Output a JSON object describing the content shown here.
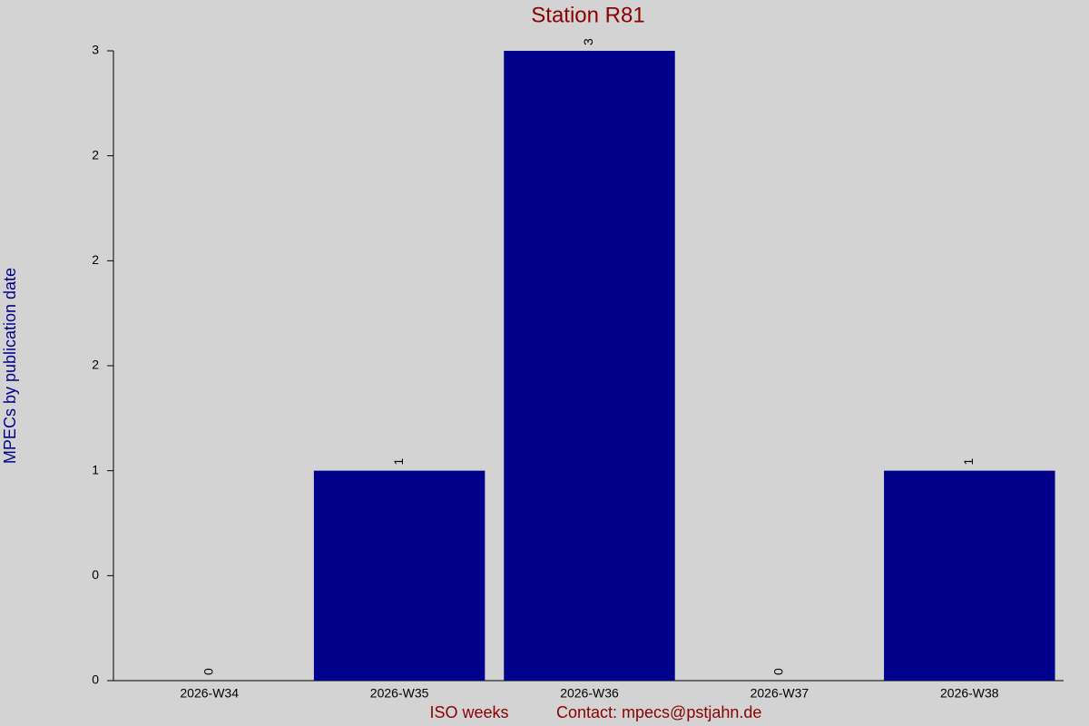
{
  "chart_data": {
    "type": "bar",
    "title": "Station R81",
    "categories": [
      "2026-W34",
      "2026-W35",
      "2026-W36",
      "2026-W37",
      "2026-W38"
    ],
    "values": [
      0,
      1,
      3,
      0,
      1
    ],
    "color": "#00008b",
    "ylim": [
      0,
      3
    ],
    "yticks": [
      0,
      {
        "value": 0.5,
        "label": "0"
      },
      1,
      {
        "value": 1.5,
        "label": "2"
      },
      2,
      {
        "value": 2.5,
        "label": "2"
      },
      3
    ],
    "ylabel": "MPECs by publication date",
    "xlabel": "ISO weeks",
    "note": "Contact: mpecs@pstjahn.de",
    "grid": false
  }
}
